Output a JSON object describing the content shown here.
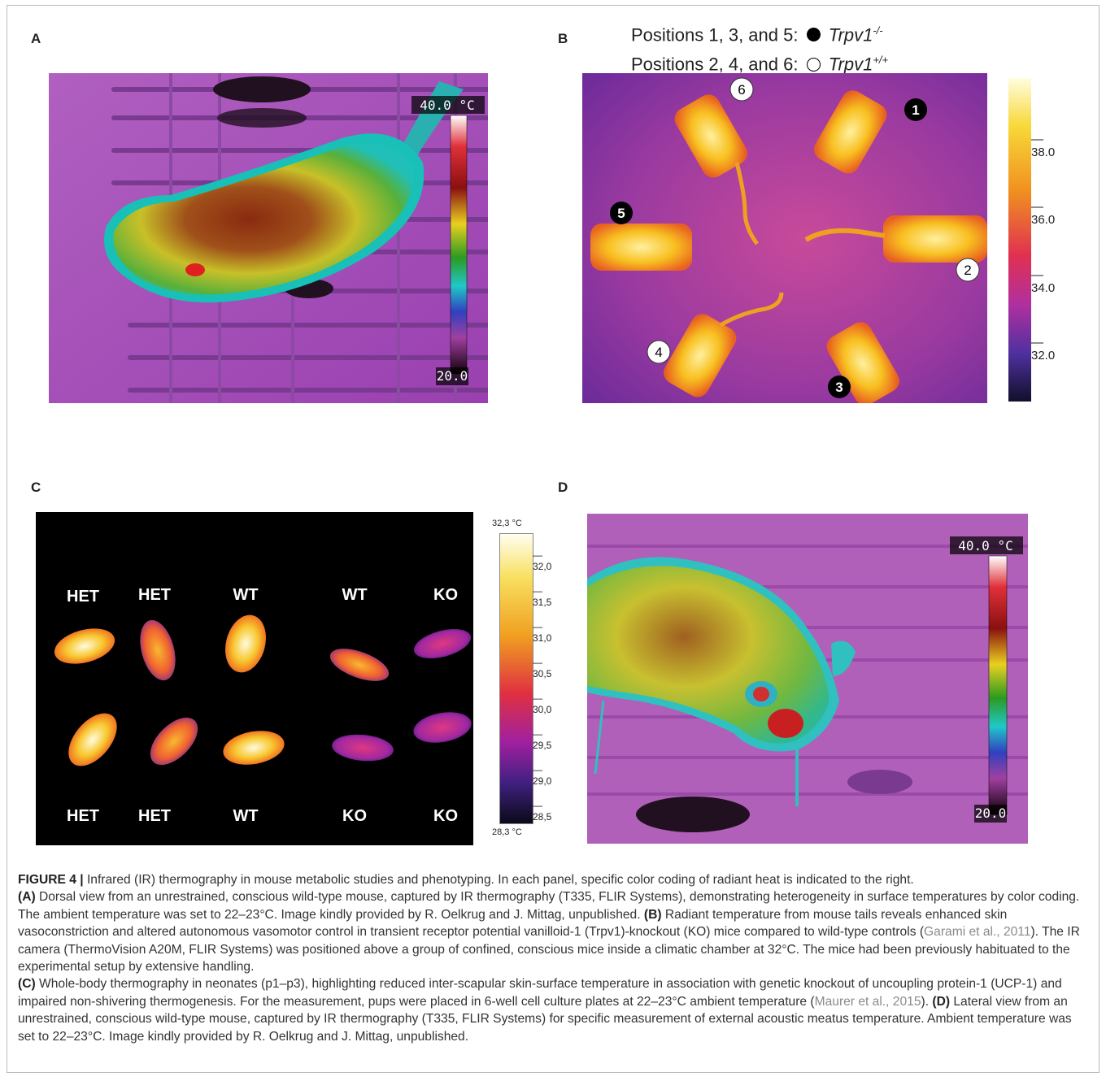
{
  "panels": {
    "A": {
      "label": "A",
      "scale_top": "40.0 °C",
      "scale_bottom": "20.0"
    },
    "B": {
      "label": "B",
      "legend_line1_prefix": "Positions 1, 3, and 5:",
      "legend_line1_gene": "Trpv1",
      "legend_line1_sup": "-/-",
      "legend_line2_prefix": "Positions 2, 4, and 6:",
      "legend_line2_gene": "Trpv1",
      "legend_line2_sup": "+/+",
      "positions": [
        "1",
        "2",
        "3",
        "4",
        "5",
        "6"
      ],
      "colorbar_ticks": [
        "38.0",
        "36.0",
        "34.0",
        "32.0"
      ]
    },
    "C": {
      "label": "C",
      "scale_top": "32,3 °C",
      "scale_bottom": "28,3 °C",
      "colorbar_ticks": [
        "32,0",
        "31,5",
        "31,0",
        "30,5",
        "30,0",
        "29,5",
        "29,0",
        "28,5"
      ],
      "top_labels": [
        "HET",
        "HET",
        "WT",
        "WT",
        "KO"
      ],
      "bottom_labels": [
        "HET",
        "HET",
        "WT",
        "KO",
        "KO"
      ]
    },
    "D": {
      "label": "D",
      "scale_top": "40.0 °C",
      "scale_bottom": "20.0"
    }
  },
  "caption": {
    "figure_label": "FIGURE 4 |",
    "intro": " Infrared (IR) thermography in mouse metabolic studies and phenotyping. In each panel, specific color coding of radiant heat is indicated to the right.",
    "a_label": "(A)",
    "a_text": " Dorsal view from an unrestrained, conscious wild-type mouse, captured by IR thermography (T335, FLIR Systems), demonstrating heterogeneity in surface temperatures by color coding. The ambient temperature was set to 22–23°C. Image kindly provided by R. Oelkrug and J. Mittag, unpublished.",
    "b_label": "(B)",
    "b_text1": " Radiant temperature from mouse tails reveals enhanced skin vasoconstriction and altered autonomous vasomotor control in transient receptor potential vanilloid-1 (Trpv1)-knockout (KO) mice compared to wild-type controls (",
    "b_ref": "Garami et al., 2011",
    "b_text2": "). The IR camera (ThermoVision A20M, FLIR Systems) was positioned above a group of confined, conscious mice inside a climatic chamber at 32°C. The mice had been previously habituated to the experimental setup by extensive handling.",
    "c_label": "(C)",
    "c_text1": " Whole-body thermography in neonates (p1–p3), highlighting reduced inter-scapular skin-surface temperature in association with genetic knockout of uncoupling protein-1 (UCP-1) and impaired non-shivering thermogenesis. For the measurement, pups were placed in 6-well cell culture plates at 22–23°C ambient temperature (",
    "c_ref": "Maurer et al., 2015",
    "c_text2": ").",
    "d_label": "(D)",
    "d_text": " Lateral view from an unrestrained, conscious wild-type mouse, captured by IR thermography (T335, FLIR Systems) for specific measurement of external acoustic meatus temperature. Ambient temperature was set to 22–23°C. Image kindly provided by R. Oelkrug and J. Mittag, unpublished."
  }
}
